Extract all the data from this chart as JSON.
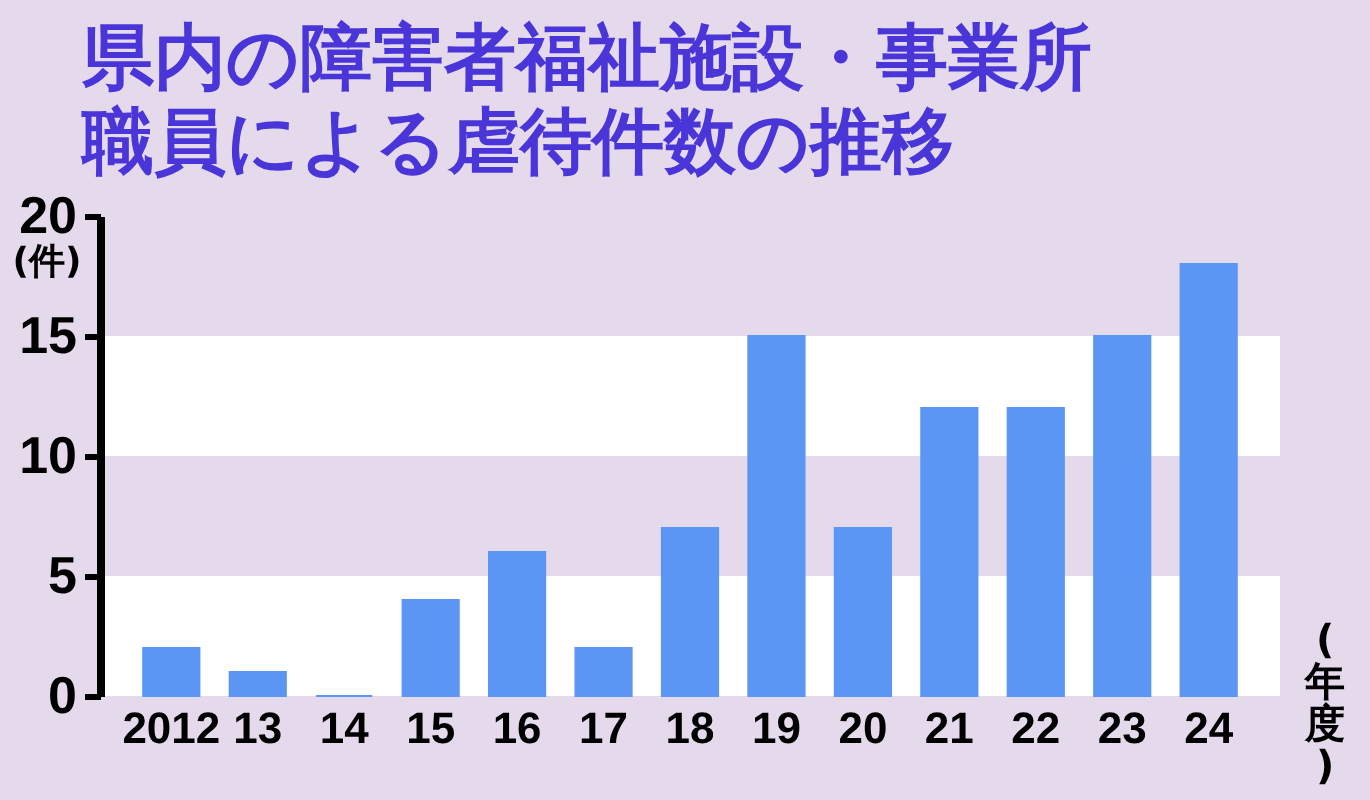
{
  "chart_data": {
    "type": "bar",
    "title": "県内の障害者福祉施設・事業所職員による虐待件数の推移",
    "ylabel": "(件)",
    "xlabel": "(年度)",
    "categories": [
      "2012",
      "13",
      "14",
      "15",
      "16",
      "17",
      "18",
      "19",
      "20",
      "21",
      "22",
      "23",
      "24"
    ],
    "values": [
      2,
      1,
      0,
      4,
      6,
      2,
      7,
      15,
      7,
      12,
      12,
      15,
      18
    ],
    "color": "#5b96f4",
    "ylim": [
      0,
      20
    ],
    "yticks": [
      0,
      5,
      10,
      15,
      20
    ],
    "bands": [
      {
        "axis": "y",
        "from": 5,
        "to": 10,
        "color": "#e4daec"
      },
      {
        "axis": "y",
        "from": 15,
        "to": 20,
        "color": "#e4daec"
      }
    ]
  }
}
